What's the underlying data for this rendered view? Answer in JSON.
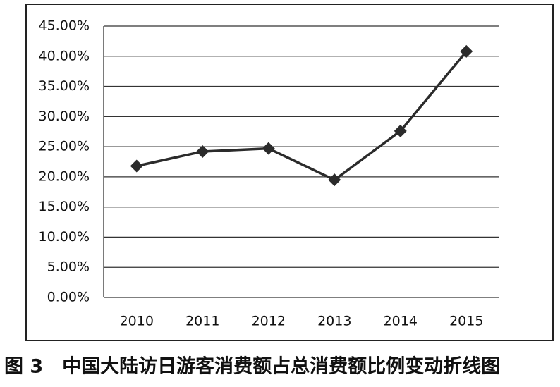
{
  "chart_data": {
    "type": "line",
    "title": "图 3　中国大陆访日游客消费额占总消费额比例变动折线图",
    "categories": [
      "2010",
      "2011",
      "2012",
      "2013",
      "2014",
      "2015"
    ],
    "series": [
      {
        "color": "#2b2b2b",
        "values": [
          21.8,
          24.2,
          24.7,
          19.5,
          27.6,
          40.8
        ]
      }
    ],
    "ylim": [
      0,
      45
    ],
    "yticks": [
      {
        "value": 0,
        "label": "0.00%"
      },
      {
        "value": 5,
        "label": "5.00%"
      },
      {
        "value": 10,
        "label": "10.00%"
      },
      {
        "value": 15,
        "label": "15.00%"
      },
      {
        "value": 20,
        "label": "20.00%"
      },
      {
        "value": 25,
        "label": "25.00%"
      },
      {
        "value": 30,
        "label": "30.00%"
      },
      {
        "value": 35,
        "label": "35.00%"
      },
      {
        "value": 40,
        "label": "40.00%"
      },
      {
        "value": 45,
        "label": "45.00%"
      }
    ],
    "grid": true
  }
}
